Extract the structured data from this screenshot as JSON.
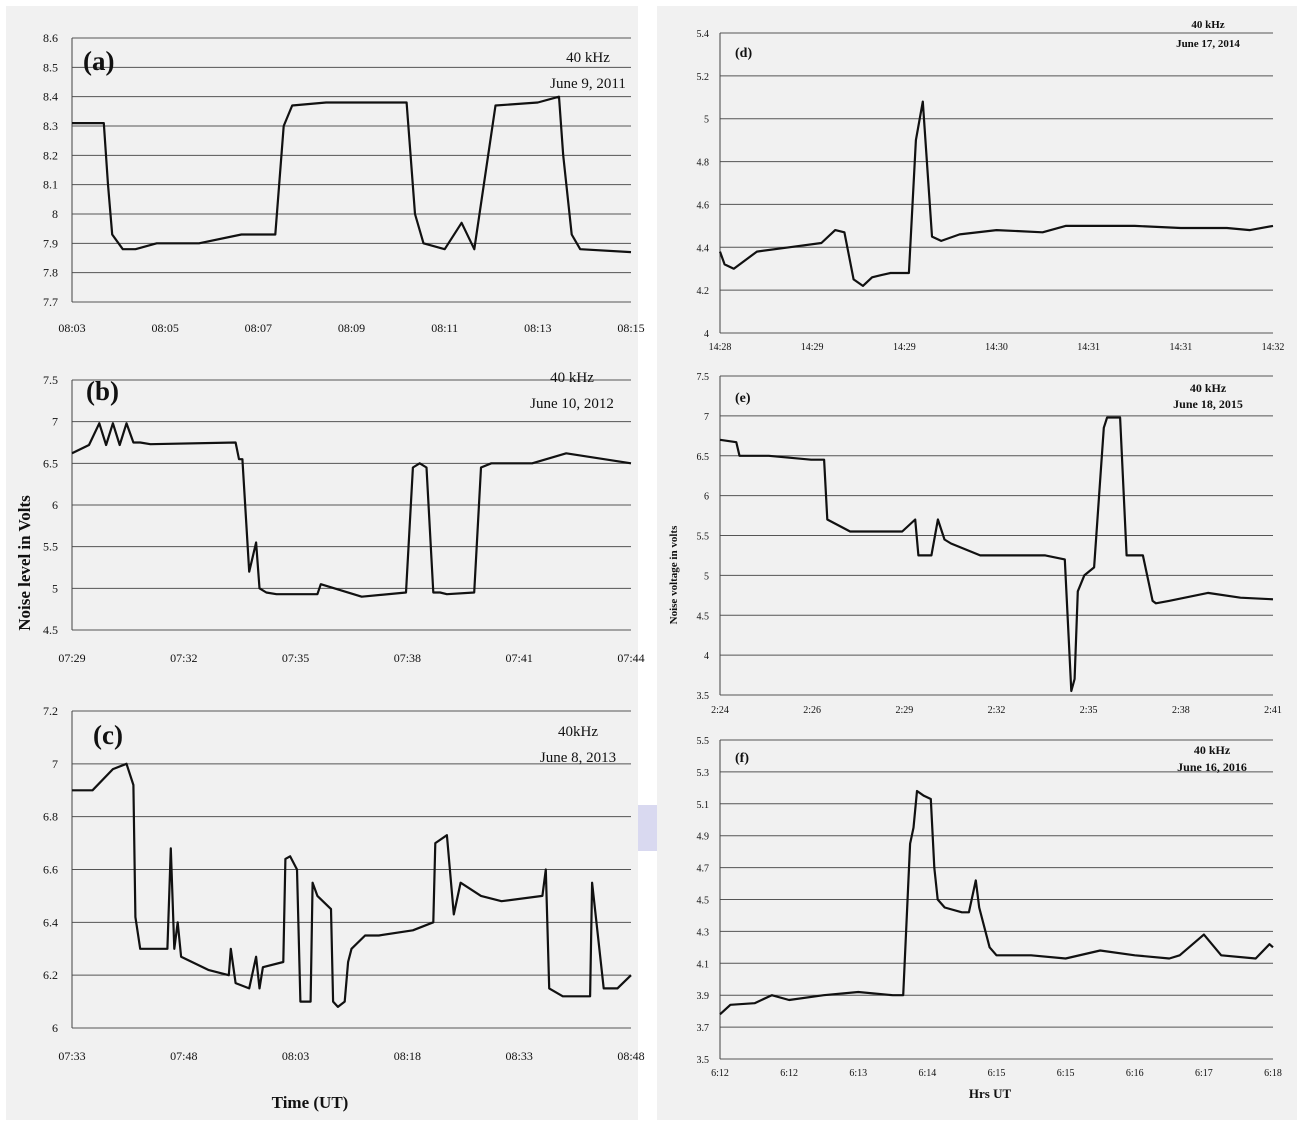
{
  "colors": {
    "line": "#111111",
    "panel_background": "#f1f1f1",
    "grid": "#555555",
    "accent_block": "#d9d9f0"
  },
  "left_ylabel": "Noise level in Volts",
  "left_xlabel": "Time (UT)",
  "right_ylabel": "Noise voltage in volts",
  "right_xlabel": "Hrs UT",
  "chart_data": [
    {
      "id": "a",
      "type": "line",
      "panel_label": "(a)",
      "annotation_lines": [
        "40 kHz",
        "June 9, 2011"
      ],
      "x_tick_labels": [
        "08:03",
        "08:05",
        "08:07",
        "08:09",
        "08:11",
        "08:13",
        "08:15"
      ],
      "y_tick_labels": [
        "7.7",
        "7.8",
        "7.9",
        "8",
        "8.1",
        "8.2",
        "8.3",
        "8.4",
        "8.5",
        "8.6"
      ],
      "ylim": [
        7.7,
        8.6
      ],
      "xlim": [
        0,
        13.2
      ],
      "grid": true,
      "series": [
        {
          "x": [
            0,
            0.75,
            0.85,
            0.95,
            1.2,
            1.5,
            2,
            3,
            4,
            4.8,
            5,
            5.2,
            6,
            7,
            7.9,
            8.1,
            8.3,
            8.8,
            9.2,
            9.5,
            10,
            11,
            11.5,
            11.6,
            11.8,
            12,
            13.2
          ],
          "y": [
            8.31,
            8.31,
            8.1,
            7.93,
            7.88,
            7.88,
            7.9,
            7.9,
            7.93,
            7.93,
            8.3,
            8.37,
            8.38,
            8.38,
            8.38,
            8.0,
            7.9,
            7.88,
            7.97,
            7.88,
            8.37,
            8.38,
            8.4,
            8.2,
            7.93,
            7.88,
            7.87
          ]
        }
      ]
    },
    {
      "id": "b",
      "type": "line",
      "panel_label": "(b)",
      "annotation_lines": [
        "40 kHz",
        "June 10, 2012"
      ],
      "x_tick_labels": [
        "07:29",
        "07:32",
        "07:35",
        "07:38",
        "07:41",
        "07:44"
      ],
      "y_tick_labels": [
        "4.5",
        "5",
        "5.5",
        "6",
        "6.5",
        "7",
        "7.5"
      ],
      "ylim": [
        4.5,
        7.5
      ],
      "xlim": [
        0,
        16.4
      ],
      "grid": true,
      "series": [
        {
          "x": [
            0,
            0.5,
            0.8,
            1.0,
            1.2,
            1.4,
            1.6,
            1.8,
            2.0,
            2.3,
            4.8,
            4.9,
            5.0,
            5.2,
            5.4,
            5.5,
            5.7,
            6,
            7.2,
            7.3,
            8.5,
            9.8,
            10.0,
            10.2,
            10.4,
            10.6,
            10.8,
            11.0,
            11.8,
            12.0,
            12.3,
            13.5,
            14.5,
            16.4
          ],
          "y": [
            6.62,
            6.72,
            6.98,
            6.72,
            6.98,
            6.72,
            6.98,
            6.75,
            6.75,
            6.73,
            6.75,
            6.55,
            6.55,
            5.2,
            5.55,
            5.0,
            4.95,
            4.93,
            4.93,
            5.05,
            4.9,
            4.95,
            6.45,
            6.5,
            6.45,
            4.95,
            4.95,
            4.93,
            4.95,
            6.45,
            6.5,
            6.5,
            6.62,
            6.5
          ]
        }
      ]
    },
    {
      "id": "c",
      "type": "line",
      "panel_label": "(c)",
      "annotation_lines": [
        "40kHz",
        "June 8, 2013"
      ],
      "x_tick_labels": [
        "07:33",
        "07:48",
        "08:03",
        "08:18",
        "08:33",
        "08:48"
      ],
      "y_tick_labels": [
        "6",
        "6.2",
        "6.4",
        "6.6",
        "6.8",
        "7",
        "7.2"
      ],
      "ylim": [
        6.0,
        7.2
      ],
      "xlim": [
        0,
        82
      ],
      "grid": true,
      "series": [
        {
          "x": [
            0,
            3,
            6,
            8,
            9,
            9.3,
            10,
            14,
            14.5,
            15,
            15.5,
            16,
            20,
            23,
            23.3,
            24,
            26,
            27,
            27.5,
            28,
            31,
            31.3,
            32,
            33,
            33.5,
            34,
            35,
            35.3,
            36,
            38,
            38.3,
            39,
            40,
            40.5,
            41,
            43,
            45,
            50,
            53,
            53.3,
            55,
            56,
            57,
            60,
            63,
            69,
            69.5,
            70,
            72,
            75,
            76,
            76.3,
            78,
            80,
            82
          ],
          "y": [
            6.9,
            6.9,
            6.98,
            7.0,
            6.92,
            6.42,
            6.3,
            6.3,
            6.68,
            6.3,
            6.4,
            6.27,
            6.22,
            6.2,
            6.3,
            6.17,
            6.15,
            6.27,
            6.15,
            6.23,
            6.25,
            6.64,
            6.65,
            6.6,
            6.1,
            6.1,
            6.1,
            6.55,
            6.5,
            6.45,
            6.1,
            6.08,
            6.1,
            6.25,
            6.3,
            6.35,
            6.35,
            6.37,
            6.4,
            6.7,
            6.73,
            6.43,
            6.55,
            6.5,
            6.48,
            6.5,
            6.6,
            6.15,
            6.12,
            6.12,
            6.12,
            6.55,
            6.15,
            6.15,
            6.2
          ]
        }
      ]
    },
    {
      "id": "d",
      "type": "line",
      "panel_label": "(d)",
      "annotation_lines": [
        "40 kHz",
        "June 17, 2014"
      ],
      "x_tick_labels": [
        "14:28",
        "14:29",
        "14:29",
        "14:30",
        "14:31",
        "14:31",
        "14:32"
      ],
      "y_tick_labels": [
        "4",
        "4.2",
        "4.4",
        "4.6",
        "4.8",
        "5",
        "5.2",
        "5.4"
      ],
      "ylim": [
        4.0,
        5.4
      ],
      "xlim": [
        0,
        12
      ],
      "grid": true,
      "series": [
        {
          "x": [
            0,
            0.1,
            0.3,
            0.8,
            1.5,
            2.2,
            2.5,
            2.7,
            2.9,
            3.1,
            3.3,
            3.5,
            3.7,
            4.1,
            4.25,
            4.4,
            4.6,
            4.8,
            5.2,
            6,
            7,
            7.5,
            8,
            9,
            10,
            11,
            11.5,
            12
          ],
          "y": [
            4.38,
            4.32,
            4.3,
            4.38,
            4.4,
            4.42,
            4.48,
            4.47,
            4.25,
            4.22,
            4.26,
            4.27,
            4.28,
            4.28,
            4.9,
            5.08,
            4.45,
            4.43,
            4.46,
            4.48,
            4.47,
            4.5,
            4.5,
            4.5,
            4.49,
            4.49,
            4.48,
            4.5
          ]
        }
      ]
    },
    {
      "id": "e",
      "type": "line",
      "panel_label": "(e)",
      "annotation_lines": [
        "40 kHz",
        "June 18, 2015"
      ],
      "x_tick_labels": [
        "2:24",
        "2:26",
        "2:29",
        "2:32",
        "2:35",
        "2:38",
        "2:41"
      ],
      "y_tick_labels": [
        "3.5",
        "4",
        "4.5",
        "5",
        "5.5",
        "6",
        "6.5",
        "7",
        "7.5"
      ],
      "ylim": [
        3.5,
        7.5
      ],
      "xlim": [
        0,
        17
      ],
      "grid": true,
      "series": [
        {
          "x": [
            0,
            0.5,
            0.6,
            1.5,
            2.8,
            3.2,
            3.3,
            4,
            5.6,
            6.0,
            6.1,
            6.5,
            6.7,
            6.9,
            7.1,
            8,
            10,
            10.6,
            10.8,
            10.9,
            11.0,
            11.2,
            11.5,
            11.8,
            11.9,
            12.3,
            12.5,
            12.6,
            13,
            13.3,
            13.4,
            13.8,
            15,
            16,
            17
          ],
          "y": [
            6.7,
            6.67,
            6.5,
            6.5,
            6.45,
            6.45,
            5.7,
            5.55,
            5.55,
            5.7,
            5.25,
            5.25,
            5.7,
            5.45,
            5.4,
            5.25,
            5.25,
            5.2,
            3.55,
            3.7,
            4.8,
            5.0,
            5.1,
            6.85,
            6.98,
            6.98,
            5.25,
            5.25,
            5.25,
            4.68,
            4.65,
            4.68,
            4.78,
            4.72,
            4.7
          ]
        }
      ]
    },
    {
      "id": "f",
      "type": "line",
      "panel_label": "(f)",
      "annotation_lines": [
        "40 kHz",
        "June 16, 2016"
      ],
      "x_tick_labels": [
        "6:12",
        "6:12",
        "6:13",
        "6:14",
        "6:15",
        "6:15",
        "6:16",
        "6:17",
        "6:18"
      ],
      "y_tick_labels": [
        "3.5",
        "3.7",
        "3.9",
        "4.1",
        "4.3",
        "4.5",
        "4.7",
        "4.9",
        "5.1",
        "5.3",
        "5.5"
      ],
      "ylim": [
        3.5,
        5.5
      ],
      "xlim": [
        0,
        16
      ],
      "grid": true,
      "series": [
        {
          "x": [
            0,
            0.3,
            1,
            1.5,
            2,
            3,
            4,
            5,
            5.3,
            5.5,
            5.6,
            5.7,
            5.9,
            6.1,
            6.2,
            6.3,
            6.5,
            7,
            7.2,
            7.4,
            7.5,
            7.8,
            8,
            9,
            10,
            11,
            12,
            13,
            13.3,
            14,
            14.5,
            15.5,
            15.9,
            16
          ],
          "y": [
            3.78,
            3.84,
            3.85,
            3.9,
            3.87,
            3.9,
            3.92,
            3.9,
            3.9,
            4.85,
            4.95,
            5.18,
            5.15,
            5.13,
            4.7,
            4.5,
            4.45,
            4.42,
            4.42,
            4.62,
            4.45,
            4.2,
            4.15,
            4.15,
            4.13,
            4.18,
            4.15,
            4.13,
            4.15,
            4.28,
            4.15,
            4.13,
            4.22,
            4.2
          ]
        }
      ]
    }
  ]
}
